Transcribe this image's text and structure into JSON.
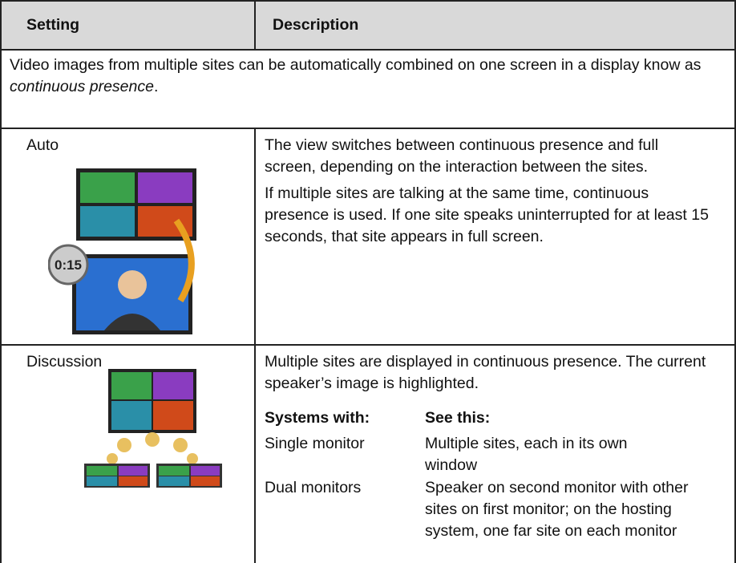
{
  "header": {
    "setting": "Setting",
    "description": "Description"
  },
  "intro": {
    "text": "Video images from multiple sites can be automatically combined on one screen in a display know as ",
    "emphasis": "continuous presence",
    "end": "."
  },
  "rows": [
    {
      "setting": "Auto",
      "paragraphs": [
        "The view switches between continuous presence and full screen, depending on the interaction between the sites.",
        "If multiple sites are talking at the same time, continuous presence is used. If one site speaks uninterrupted for at least 15 seconds, that site appears in full screen."
      ]
    },
    {
      "setting": "Discussion",
      "paragraphs": [
        "Multiple sites are displayed in continuous presence. The current speaker’s image is highlighted."
      ],
      "table": {
        "header": [
          "Systems with:",
          "See this:"
        ],
        "rows": [
          [
            "Single monitor",
            "Multiple sites, each in its own window"
          ],
          [
            "Dual monitors",
            "Speaker on second monitor with other sites on first monitor; on the hosting system, one far site on each monitor"
          ]
        ]
      }
    }
  ]
}
